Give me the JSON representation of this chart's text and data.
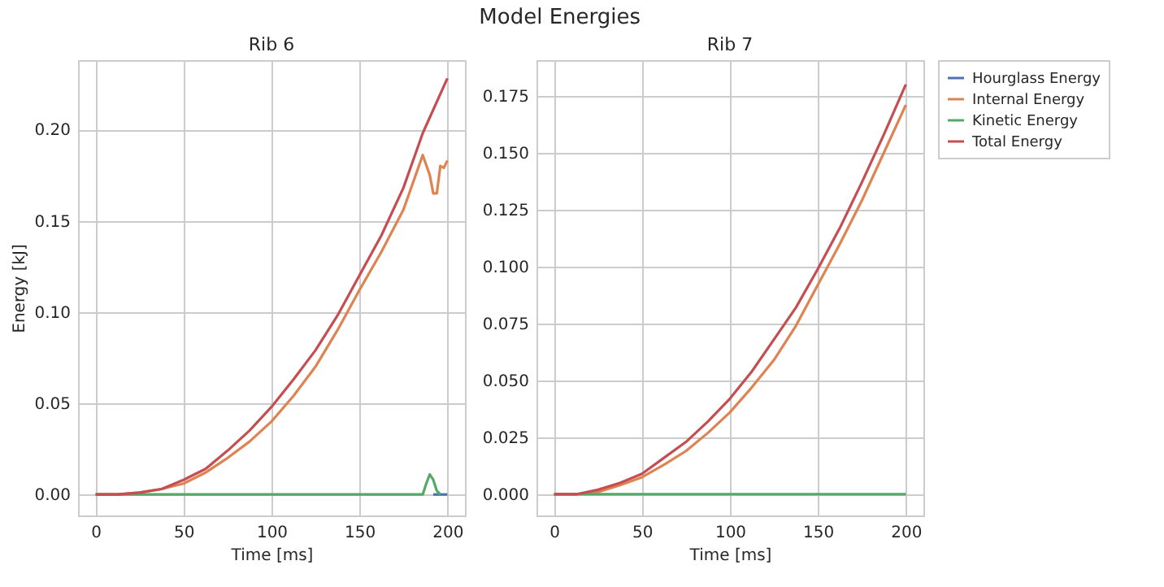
{
  "chart_data": [
    {
      "type": "line",
      "title": "Rib 6",
      "xlabel": "Time [ms]",
      "ylabel": "Energy [kJ]",
      "annotations": [
        "Model Energies"
      ],
      "xlim": [
        -10,
        210
      ],
      "ylim": [
        -0.0115,
        0.238
      ],
      "xticks": [
        0,
        50,
        100,
        150,
        200
      ],
      "yticks": [
        {
          "value": 0,
          "label": "0.00"
        },
        0.05,
        {
          "value": 0.1,
          "label": "0.10"
        },
        0.15,
        {
          "value": 0.2,
          "label": "0.20"
        }
      ],
      "grid": true,
      "legend": "right",
      "series": [
        {
          "name": "Hourglass Energy",
          "color": "#4c72b0",
          "x": [
            192,
            200
          ],
          "values": [
            0,
            0
          ]
        },
        {
          "name": "Internal Energy",
          "color": "#dd8452",
          "x": [
            0,
            12.5,
            25,
            37.5,
            50,
            62.5,
            75,
            87.5,
            100,
            112.5,
            125,
            137.5,
            150,
            162.5,
            175,
            186,
            190,
            192,
            194,
            196,
            198,
            200
          ],
          "values": [
            0,
            0,
            0.001,
            0.003,
            0.006,
            0.012,
            0.02,
            0.029,
            0.04,
            0.054,
            0.07,
            0.09,
            0.112,
            0.133,
            0.156,
            0.186,
            0.175,
            0.165,
            0.165,
            0.18,
            0.179,
            0.183
          ]
        },
        {
          "name": "Kinetic Energy",
          "color": "#55a868",
          "x": [
            0,
            186,
            188,
            190,
            192,
            194,
            196
          ],
          "values": [
            0,
            0,
            0.006,
            0.011,
            0.008,
            0.002,
            0
          ]
        },
        {
          "name": "Total Energy",
          "color": "#c44e52",
          "x": [
            0,
            12.5,
            25,
            37.5,
            50,
            62.5,
            75,
            87.5,
            100,
            112.5,
            125,
            137.5,
            150,
            162.5,
            175,
            186,
            200
          ],
          "values": [
            0,
            0,
            0.001,
            0.003,
            0.008,
            0.014,
            0.024,
            0.035,
            0.048,
            0.063,
            0.079,
            0.098,
            0.12,
            0.142,
            0.168,
            0.198,
            0.228
          ]
        }
      ]
    },
    {
      "type": "line",
      "title": "Rib 7",
      "xlabel": "Time [ms]",
      "xlim": [
        -10,
        210
      ],
      "ylim": [
        -0.0093,
        0.1907
      ],
      "xticks": [
        0,
        50,
        100,
        150,
        200
      ],
      "yticks": [
        {
          "value": 0,
          "label": "0.000"
        },
        0.025,
        {
          "value": 0.05,
          "label": "0.050"
        },
        0.075,
        {
          "value": 0.1,
          "label": "0.100"
        },
        0.125,
        {
          "value": 0.15,
          "label": "0.150"
        },
        0.175
      ],
      "grid": true,
      "legend": "right",
      "series": [
        {
          "name": "Internal Energy",
          "color": "#dd8452",
          "x": [
            0,
            12.5,
            25,
            37.5,
            50,
            62.5,
            75,
            87.5,
            100,
            112.5,
            125,
            137.5,
            150,
            162.5,
            175,
            187.5,
            200
          ],
          "values": [
            0,
            0,
            0.001,
            0.004,
            0.0075,
            0.013,
            0.019,
            0.027,
            0.036,
            0.047,
            0.059,
            0.074,
            0.092,
            0.11,
            0.129,
            0.15,
            0.171
          ]
        },
        {
          "name": "Kinetic Energy",
          "color": "#55a868",
          "x": [
            0,
            200
          ],
          "values": [
            0,
            0
          ]
        },
        {
          "name": "Total Energy",
          "color": "#c44e52",
          "x": [
            0,
            12.5,
            25,
            37.5,
            50,
            62.5,
            75,
            87.5,
            100,
            112.5,
            125,
            137.5,
            150,
            162.5,
            175,
            187.5,
            200
          ],
          "values": [
            0,
            0,
            0.002,
            0.005,
            0.009,
            0.016,
            0.023,
            0.032,
            0.042,
            0.054,
            0.068,
            0.082,
            0.099,
            0.117,
            0.137,
            0.158,
            0.18
          ]
        }
      ]
    }
  ]
}
